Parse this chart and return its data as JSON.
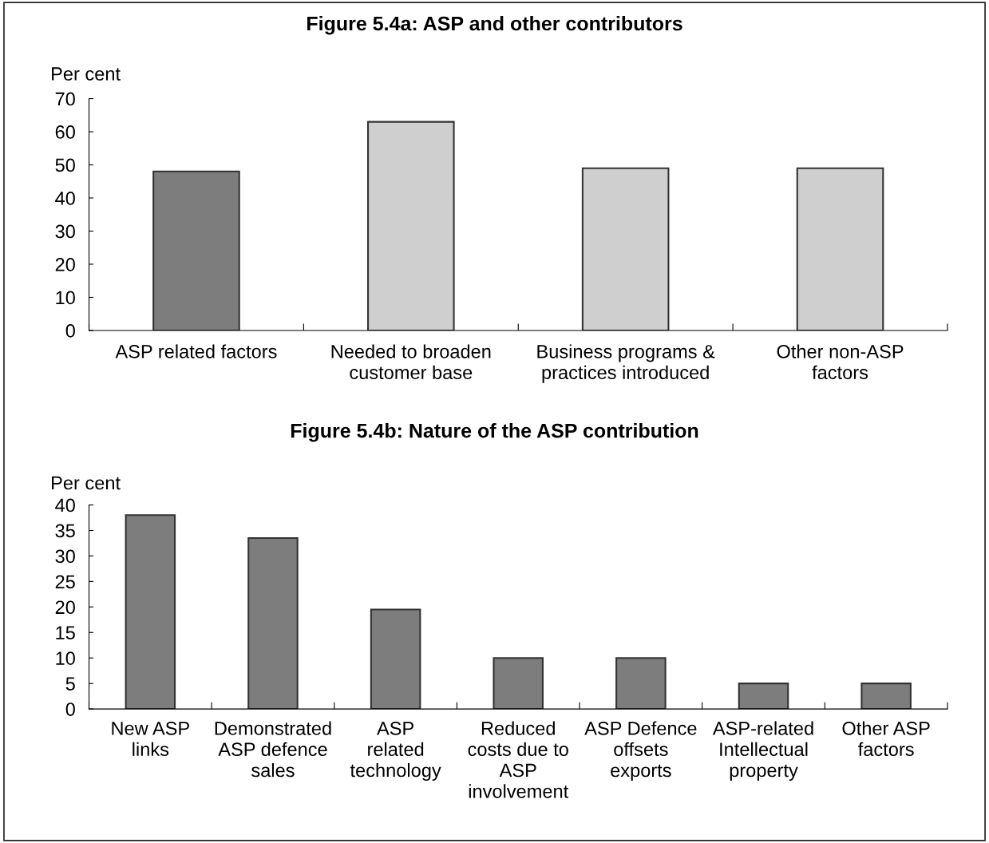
{
  "chart_data": [
    {
      "type": "bar",
      "title": "Figure 5.4a: ASP and other contributors",
      "ylabel": "Per cent",
      "categories": [
        "ASP related factors",
        "Needed to broaden\ncustomer base",
        "Business programs &\npractices introduced",
        "Other non-ASP\nfactors"
      ],
      "values": [
        48,
        63,
        49,
        49
      ],
      "colors": [
        "#7d7d7d",
        "#cfcfcf",
        "#cfcfcf",
        "#cfcfcf"
      ],
      "ylim": [
        0,
        70
      ],
      "yticks": [
        0,
        10,
        20,
        30,
        40,
        50,
        60,
        70
      ],
      "grid": false
    },
    {
      "type": "bar",
      "title": "Figure 5.4b: Nature of the ASP contribution",
      "ylabel": "Per cent",
      "categories": [
        "New ASP\nlinks",
        "Demonstrated\nASP defence\nsales",
        "ASP\nrelated\ntechnology",
        "Reduced\ncosts due to\nASP\ninvolvement",
        "ASP Defence\noffsets\nexports",
        "ASP-related\nIntellectual\nproperty",
        "Other ASP\nfactors"
      ],
      "values": [
        38,
        33.5,
        19.5,
        10,
        10,
        5,
        5
      ],
      "colors": [
        "#7d7d7d",
        "#7d7d7d",
        "#7d7d7d",
        "#7d7d7d",
        "#7d7d7d",
        "#7d7d7d",
        "#7d7d7d"
      ],
      "ylim": [
        0,
        40
      ],
      "yticks": [
        0,
        5,
        10,
        15,
        20,
        25,
        30,
        35,
        40
      ],
      "grid": false
    }
  ]
}
